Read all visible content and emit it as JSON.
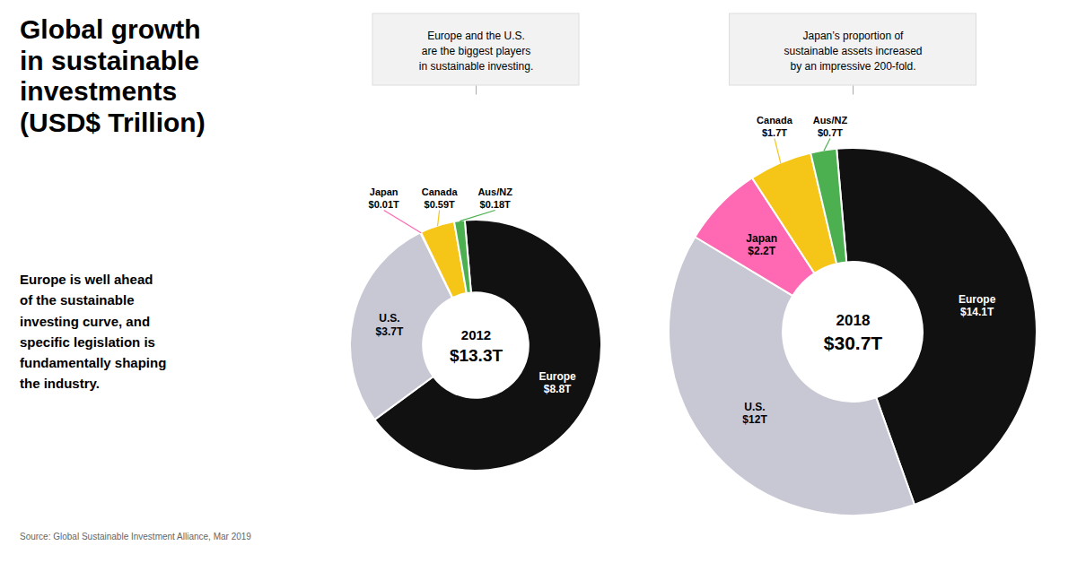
{
  "title": "Global growth\nin sustainable\ninvestments\n(USD$ Trillion)",
  "subtitle": "Europe is well ahead\nof the sustainable\ninvesting curve, and\nspecific legislation is\nfundamentally shaping\nthe industry.",
  "caption": "Source: Global Sustainable Investment Alliance, Mar 2019",
  "chart_data": [
    {
      "type": "pie",
      "title": "2012",
      "subtitle": "$13.3T",
      "annotation": "Europe and the U.S.\nare the biggest players\nin sustainable investing.",
      "categories": [
        "Europe",
        "U.S.",
        "Japan",
        "Canada",
        "Aus/NZ"
      ],
      "values": [
        8.8,
        3.7,
        0.01,
        0.59,
        0.18
      ],
      "colors": [
        "#111111",
        "#c8c8d4",
        "#ff69b4",
        "#f5c518",
        "#4caf50"
      ],
      "data_labels": true,
      "value_labels": [
        "$8.8T",
        "$3.7T",
        "$0.01T",
        "$0.59T",
        "$0.18T"
      ]
    },
    {
      "type": "pie",
      "title": "2018",
      "subtitle": "$30.7T",
      "annotation": "Japan’s proportion of\nsustainable assets increased\nby an impressive 200-fold.",
      "categories": [
        "Europe",
        "U.S.",
        "Japan",
        "Canada",
        "Aus/NZ"
      ],
      "values": [
        14.1,
        12.0,
        2.2,
        1.7,
        0.7
      ],
      "colors": [
        "#111111",
        "#c8c8d4",
        "#ff69b4",
        "#f5c518",
        "#4caf50"
      ],
      "data_labels": true,
      "value_labels": [
        "$14.1T",
        "$12T",
        "$2.2T",
        "$1.7T",
        "$0.7T"
      ]
    }
  ]
}
